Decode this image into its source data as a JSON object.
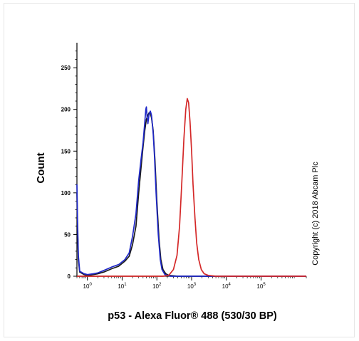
{
  "chart_data": {
    "type": "line",
    "title": "",
    "xlabel": "p53 - Alexa Fluor® 488 (530/30 BP)",
    "ylabel": "Count",
    "xscale": "log",
    "xlim": [
      0.5,
      2000000
    ],
    "ylim": [
      0,
      280
    ],
    "x_tick_labels": [
      {
        "value": 1,
        "base": "10",
        "exp": "0"
      },
      {
        "value": 10,
        "base": "10",
        "exp": "1"
      },
      {
        "value": 100,
        "base": "10",
        "exp": "2"
      },
      {
        "value": 1000,
        "base": "10",
        "exp": "3"
      },
      {
        "value": 10000,
        "base": "10",
        "exp": "4"
      },
      {
        "value": 100000,
        "base": "10",
        "exp": "5"
      }
    ],
    "y_ticks": [
      0,
      50,
      100,
      150,
      200,
      250
    ],
    "grid": false,
    "legend": "none",
    "annotation": "Copyright (c) 2018 Abcam Plc",
    "series": [
      {
        "color": "#1a1a1a",
        "points": [
          [
            0.5,
            100
          ],
          [
            0.52,
            60
          ],
          [
            0.55,
            20
          ],
          [
            0.6,
            5
          ],
          [
            0.8,
            2
          ],
          [
            1,
            1
          ],
          [
            1.5,
            2
          ],
          [
            2,
            3
          ],
          [
            3,
            5
          ],
          [
            5,
            9
          ],
          [
            8,
            12
          ],
          [
            12,
            18
          ],
          [
            16,
            24
          ],
          [
            20,
            38
          ],
          [
            25,
            60
          ],
          [
            30,
            100
          ],
          [
            35,
            130
          ],
          [
            40,
            155
          ],
          [
            45,
            175
          ],
          [
            50,
            188
          ],
          [
            55,
            193
          ],
          [
            60,
            196
          ],
          [
            65,
            195
          ],
          [
            70,
            190
          ],
          [
            78,
            175
          ],
          [
            88,
            140
          ],
          [
            100,
            90
          ],
          [
            115,
            45
          ],
          [
            130,
            20
          ],
          [
            150,
            8
          ],
          [
            180,
            3
          ],
          [
            220,
            1
          ],
          [
            400,
            0
          ],
          [
            2000000,
            0
          ]
        ]
      },
      {
        "color": "#1f28c8",
        "points": [
          [
            0.5,
            110
          ],
          [
            0.52,
            70
          ],
          [
            0.55,
            25
          ],
          [
            0.6,
            6
          ],
          [
            0.8,
            3
          ],
          [
            1,
            2
          ],
          [
            1.5,
            3
          ],
          [
            2,
            4
          ],
          [
            3,
            7
          ],
          [
            5,
            11
          ],
          [
            8,
            14
          ],
          [
            12,
            20
          ],
          [
            16,
            28
          ],
          [
            20,
            48
          ],
          [
            25,
            75
          ],
          [
            30,
            115
          ],
          [
            35,
            140
          ],
          [
            40,
            160
          ],
          [
            45,
            185
          ],
          [
            48,
            200
          ],
          [
            50,
            203
          ],
          [
            52,
            192
          ],
          [
            55,
            183
          ],
          [
            60,
            195
          ],
          [
            65,
            198
          ],
          [
            70,
            193
          ],
          [
            78,
            172
          ],
          [
            85,
            145
          ],
          [
            95,
            100
          ],
          [
            110,
            50
          ],
          [
            125,
            20
          ],
          [
            140,
            8
          ],
          [
            170,
            2
          ],
          [
            250,
            0
          ],
          [
            2000000,
            0
          ]
        ]
      },
      {
        "color": "#d42828",
        "points": [
          [
            0.5,
            0
          ],
          [
            150,
            0
          ],
          [
            220,
            1
          ],
          [
            300,
            8
          ],
          [
            380,
            25
          ],
          [
            450,
            60
          ],
          [
            520,
            110
          ],
          [
            600,
            165
          ],
          [
            680,
            200
          ],
          [
            750,
            213
          ],
          [
            820,
            208
          ],
          [
            900,
            185
          ],
          [
            1000,
            150
          ],
          [
            1100,
            110
          ],
          [
            1250,
            70
          ],
          [
            1400,
            40
          ],
          [
            1600,
            20
          ],
          [
            1900,
            8
          ],
          [
            2300,
            3
          ],
          [
            3000,
            1
          ],
          [
            5000,
            0
          ],
          [
            2000000,
            0
          ]
        ]
      }
    ]
  }
}
